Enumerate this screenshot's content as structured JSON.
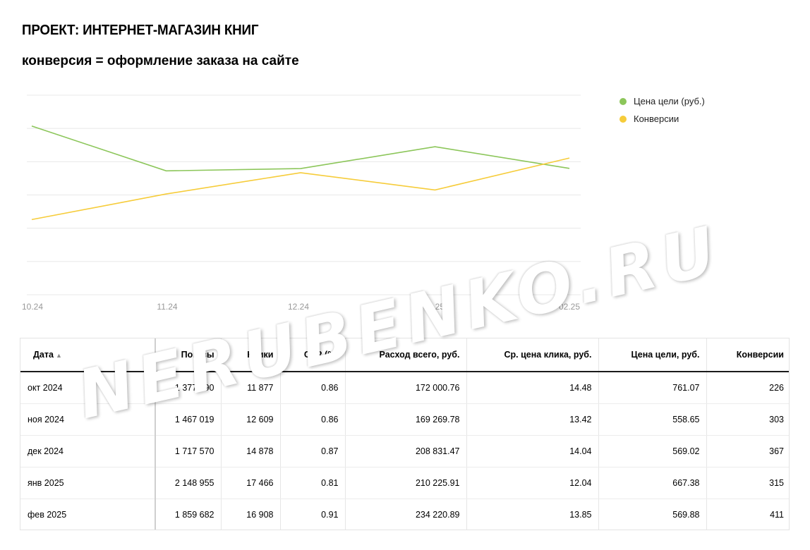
{
  "title": "ПРОЕКТ: ИНТЕРНЕТ-МАГАЗИН КНИГ",
  "subtitle": "конверсия = оформление заказа на сайте",
  "watermark": "NERUBENKO.RU",
  "colors": {
    "goal_price": "#8cc65a",
    "conversions": "#f6cc3a",
    "grid": "#e8e8e8",
    "axis_text": "#999999"
  },
  "chart_data": {
    "type": "line",
    "categories": [
      "10.24",
      "11.24",
      "12.24",
      "01.25",
      "02.25"
    ],
    "series": [
      {
        "name": "Цена цели (руб.)",
        "values": [
          761.07,
          558.65,
          569.02,
          667.38,
          569.88
        ],
        "color": "#8cc65a",
        "ylim": [
          0,
          900
        ]
      },
      {
        "name": "Конверсии",
        "values": [
          226,
          303,
          367,
          315,
          411
        ],
        "color": "#f6cc3a",
        "ylim": [
          0,
          600
        ]
      }
    ],
    "grid": true,
    "legend_position": "right"
  },
  "table": {
    "headers": [
      "Дата",
      "Показы",
      "Клики",
      "CTR (%)",
      "Расход всего, руб.",
      "Ср. цена клика, руб.",
      "Цена цели, руб.",
      "Конверсии"
    ],
    "sort_icon": "sort-ascending-icon",
    "sort_glyph": "▲",
    "rows": [
      [
        "окт 2024",
        "1 377 490",
        "11 877",
        "0.86",
        "172 000.76",
        "14.48",
        "761.07",
        "226"
      ],
      [
        "ноя 2024",
        "1 467 019",
        "12 609",
        "0.86",
        "169 269.78",
        "13.42",
        "558.65",
        "303"
      ],
      [
        "дек 2024",
        "1 717 570",
        "14 878",
        "0.87",
        "208 831.47",
        "14.04",
        "569.02",
        "367"
      ],
      [
        "янв 2025",
        "2 148 955",
        "17 466",
        "0.81",
        "210 225.91",
        "12.04",
        "667.38",
        "315"
      ],
      [
        "фев 2025",
        "1 859 682",
        "16 908",
        "0.91",
        "234 220.89",
        "13.85",
        "569.88",
        "411"
      ]
    ]
  }
}
